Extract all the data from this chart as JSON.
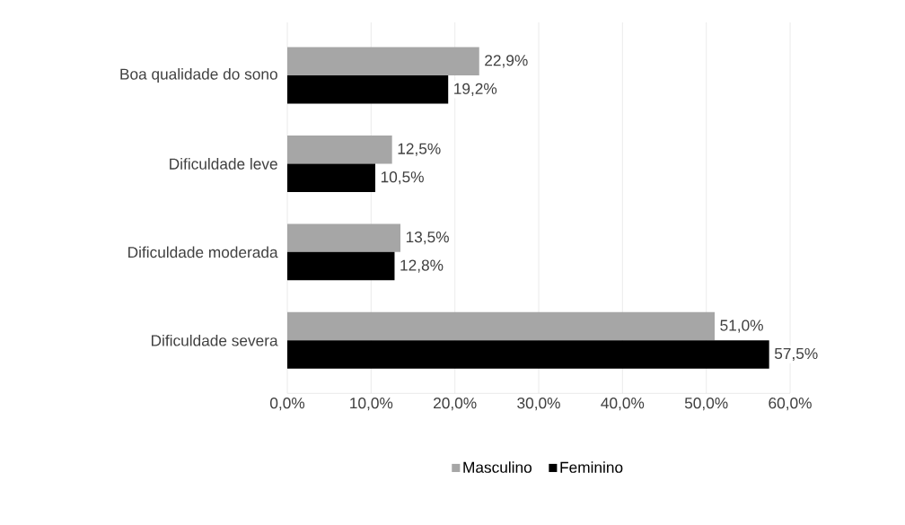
{
  "chart_data": {
    "type": "bar",
    "orientation": "horizontal",
    "categories": [
      "Boa qualidade do sono",
      "Dificuldade leve",
      "Dificuldade moderada",
      "Dificuldade severa"
    ],
    "series": [
      {
        "name": "Masculino",
        "color": "#a6a6a6",
        "values": [
          22.9,
          12.5,
          13.5,
          51.0
        ],
        "value_labels": [
          "22,9%",
          "12,5%",
          "13,5%",
          "51,0%"
        ]
      },
      {
        "name": "Feminino",
        "color": "#000000",
        "values": [
          19.2,
          10.5,
          12.8,
          57.5
        ],
        "value_labels": [
          "19,2%",
          "10,5%",
          "12,8%",
          "57,5%"
        ]
      }
    ],
    "xlim": [
      0,
      60
    ],
    "xticks": [
      {
        "value": 0,
        "label": "0,0%"
      },
      {
        "value": 10,
        "label": "10,0%"
      },
      {
        "value": 20,
        "label": "20,0%"
      },
      {
        "value": 30,
        "label": "30,0%"
      },
      {
        "value": 40,
        "label": "40,0%"
      },
      {
        "value": 50,
        "label": "50,0%"
      },
      {
        "value": 60,
        "label": "60,0%"
      }
    ],
    "grid": "x",
    "legend": "bottom"
  }
}
